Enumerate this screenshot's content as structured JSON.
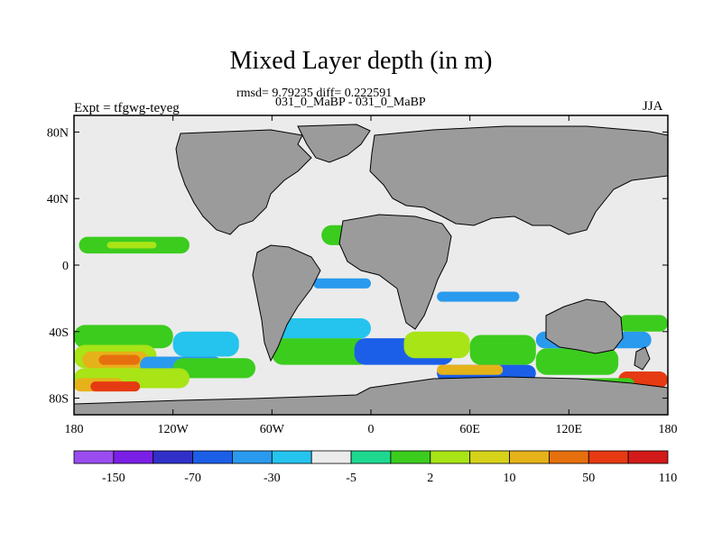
{
  "title": "Mixed Layer depth (in m)",
  "stats_line": "rmsd= 9.79235 diff= 0.222591",
  "subtitle": "031_0_MaBP - 031_0_MaBP",
  "left_label": "Expt = tfgwg-teyeg",
  "right_label": "JJA",
  "chart_data": {
    "type": "heatmap",
    "projection": "cylindrical-equidistant",
    "xlim": [
      -180,
      180
    ],
    "ylim": [
      -90,
      90
    ],
    "x_tick_labels": [
      "180",
      "120W",
      "60W",
      "0",
      "60E",
      "120E",
      "180"
    ],
    "x_tick_values": [
      -180,
      -120,
      -60,
      0,
      60,
      120,
      180
    ],
    "y_tick_labels": [
      "80N",
      "40N",
      "0",
      "40S",
      "80S"
    ],
    "y_tick_values": [
      80,
      40,
      0,
      -40,
      -80
    ],
    "land_color": "#9b9b9b",
    "colorbar": {
      "colors": [
        "#9a4cf0",
        "#7a1fe6",
        "#3030c8",
        "#1b5fe8",
        "#2a9aee",
        "#24c4ee",
        "#ebebeb",
        "#1ed890",
        "#3ccc1e",
        "#a8e416",
        "#d6d21a",
        "#e6b21a",
        "#e6700e",
        "#e63a12",
        "#d21a1a"
      ],
      "labels": [
        "-150",
        "-70",
        "-30",
        "-5",
        "2",
        "10",
        "50",
        "110"
      ]
    },
    "regions": [
      {
        "category": 8,
        "lon": [
          -177,
          -110
        ],
        "lat": [
          7,
          17
        ]
      },
      {
        "category": 9,
        "lon": [
          -160,
          -130
        ],
        "lat": [
          10,
          14
        ]
      },
      {
        "category": 8,
        "lon": [
          -30,
          30
        ],
        "lat": [
          12,
          24
        ]
      },
      {
        "category": 6,
        "lon": [
          -175,
          -60
        ],
        "lat": [
          -17,
          -10
        ]
      },
      {
        "category": 6,
        "lon": [
          -50,
          10
        ],
        "lat": [
          -17,
          -7
        ]
      },
      {
        "category": 4,
        "lon": [
          -35,
          0
        ],
        "lat": [
          -14,
          -8
        ]
      },
      {
        "category": 6,
        "lon": [
          25,
          100
        ],
        "lat": [
          -27,
          -13
        ]
      },
      {
        "category": 4,
        "lon": [
          40,
          90
        ],
        "lat": [
          -22,
          -16
        ]
      },
      {
        "category": 6,
        "lon": [
          90,
          180
        ],
        "lat": [
          -12,
          -5
        ]
      },
      {
        "category": 8,
        "lon": [
          -180,
          -120
        ],
        "lat": [
          -50,
          -36
        ]
      },
      {
        "category": 9,
        "lon": [
          -180,
          -130
        ],
        "lat": [
          -62,
          -48
        ]
      },
      {
        "category": 11,
        "lon": [
          -175,
          -135
        ],
        "lat": [
          -62,
          -52
        ]
      },
      {
        "category": 12,
        "lon": [
          -165,
          -140
        ],
        "lat": [
          -60,
          -54
        ]
      },
      {
        "category": 5,
        "lon": [
          -120,
          -80
        ],
        "lat": [
          -55,
          -40
        ]
      },
      {
        "category": 4,
        "lon": [
          -140,
          -90
        ],
        "lat": [
          -65,
          -55
        ]
      },
      {
        "category": 8,
        "lon": [
          -120,
          -70
        ],
        "lat": [
          -68,
          -56
        ]
      },
      {
        "category": 9,
        "lon": [
          -180,
          -110
        ],
        "lat": [
          -74,
          -62
        ]
      },
      {
        "category": 11,
        "lon": [
          -180,
          -150
        ],
        "lat": [
          -76,
          -68
        ]
      },
      {
        "category": 13,
        "lon": [
          -170,
          -140
        ],
        "lat": [
          -76,
          -70
        ]
      },
      {
        "category": 8,
        "lon": [
          -60,
          0
        ],
        "lat": [
          -60,
          -44
        ]
      },
      {
        "category": 5,
        "lon": [
          -60,
          0
        ],
        "lat": [
          -44,
          -32
        ]
      },
      {
        "category": 3,
        "lon": [
          -10,
          50
        ],
        "lat": [
          -60,
          -44
        ]
      },
      {
        "category": 9,
        "lon": [
          20,
          60
        ],
        "lat": [
          -56,
          -40
        ]
      },
      {
        "category": 8,
        "lon": [
          60,
          100
        ],
        "lat": [
          -60,
          -42
        ]
      },
      {
        "category": 3,
        "lon": [
          40,
          100
        ],
        "lat": [
          -70,
          -60
        ]
      },
      {
        "category": 11,
        "lon": [
          40,
          80
        ],
        "lat": [
          -66,
          -60
        ]
      },
      {
        "category": 8,
        "lon": [
          100,
          150
        ],
        "lat": [
          -66,
          -50
        ]
      },
      {
        "category": 4,
        "lon": [
          100,
          170
        ],
        "lat": [
          -50,
          -40
        ]
      },
      {
        "category": 8,
        "lon": [
          150,
          180
        ],
        "lat": [
          -40,
          -30
        ]
      },
      {
        "category": 13,
        "lon": [
          150,
          180
        ],
        "lat": [
          -74,
          -64
        ]
      },
      {
        "category": 8,
        "lon": [
          110,
          160
        ],
        "lat": [
          -76,
          -68
        ]
      }
    ]
  }
}
